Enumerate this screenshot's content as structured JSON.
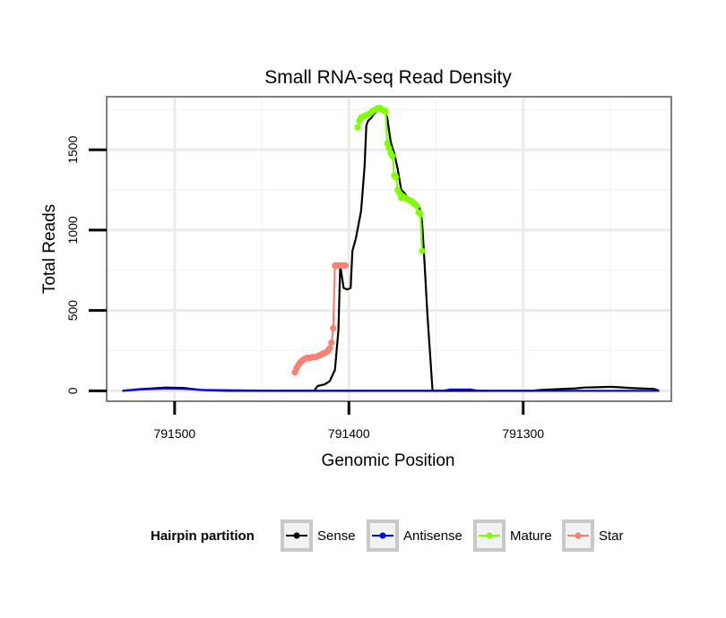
{
  "chart_data": {
    "type": "line",
    "title": "Small RNA-seq Read Density",
    "xlabel": "Genomic Position",
    "ylabel": "Total Reads",
    "x_reversed": true,
    "xlim": [
      791539,
      791215
    ],
    "ylim": [
      -65,
      1830
    ],
    "grid": true,
    "x_ticks": [
      791500,
      791400,
      791300
    ],
    "x_tick_labels": [
      "791500",
      "791400",
      "791300"
    ],
    "y_ticks": [
      0,
      500,
      1000,
      1500
    ],
    "y_tick_labels": [
      "0",
      "500",
      "1000",
      "1500"
    ],
    "legend": {
      "title": "Hairpin partition",
      "position": "bottom",
      "entries": [
        {
          "label": "Sense",
          "color": "#000000"
        },
        {
          "label": "Antisense",
          "color": "#0000ff"
        },
        {
          "label": "Mature",
          "color": "#7fff00"
        },
        {
          "label": "Star",
          "color": "#fa8072"
        }
      ]
    },
    "series": [
      {
        "name": "Sense",
        "color": "#000000",
        "x": [
          791530,
          791520,
          791505,
          791495,
          791485,
          791470,
          791440,
          791400,
          791400,
          791385,
          791380,
          791370,
          791340,
          791320,
          791310,
          791300,
          791295,
          791290,
          791280,
          791270,
          791265,
          791258,
          791250,
          791245,
          791239,
          791235,
          791225,
          791222
        ],
        "y": [
          0,
          10,
          20,
          18,
          5,
          0,
          0,
          0,
          0,
          0,
          0,
          0,
          0,
          0,
          0,
          0,
          0,
          5,
          10,
          15,
          20,
          22,
          25,
          22,
          18,
          16,
          12,
          0
        ]
      },
      {
        "name": "Sense",
        "color": "#000000",
        "x": [
          791440,
          791420,
          791418,
          791414,
          791411,
          791408,
          791406,
          791405,
          791403,
          791401,
          791399,
          791398,
          791396,
          791393,
          791391,
          791390,
          791389,
          791387,
          791386,
          791384,
          791383,
          791382,
          791380,
          791378,
          791377,
          791376,
          791375,
          791374,
          791372,
          791370,
          791368,
          791367,
          791366,
          791365,
          791364,
          791363,
          791362,
          791360,
          791359,
          791358,
          791357,
          791355,
          791352,
          791349,
          791345,
          791341,
          791339,
          791336,
          791335,
          791320
        ],
        "y": [
          0,
          0,
          30,
          40,
          60,
          130,
          380,
          780,
          640,
          630,
          640,
          870,
          950,
          1120,
          1400,
          1650,
          1680,
          1700,
          1720,
          1740,
          1755,
          1760,
          1745,
          1700,
          1620,
          1550,
          1510,
          1480,
          1380,
          1250,
          1230,
          1210,
          1195,
          1190,
          1180,
          1170,
          1160,
          1150,
          1120,
          1050,
          870,
          480,
          0,
          0,
          0,
          0,
          0,
          0,
          0,
          0
        ]
      },
      {
        "name": "Antisense",
        "color": "#0000ff",
        "x": [
          791530,
          791520,
          791505,
          791495,
          791485,
          791440,
          791400,
          791360,
          791346,
          791342,
          791330,
          791326,
          791300,
          791280,
          791260,
          791222
        ],
        "y": [
          0,
          8,
          15,
          13,
          5,
          0,
          0,
          0,
          0,
          8,
          8,
          0,
          0,
          0,
          0,
          0
        ]
      },
      {
        "name": "Mature",
        "color": "#7fff00",
        "x": [
          791395,
          791394,
          791393,
          791392,
          791391,
          791390,
          791389,
          791388,
          791387,
          791386,
          791385,
          791384,
          791383,
          791382,
          791381,
          791380,
          791379,
          791378,
          791377,
          791376,
          791375,
          791374,
          791373,
          791372,
          791371,
          791370,
          791369,
          791368,
          791367,
          791366,
          791365,
          791364,
          791363,
          791362,
          791361,
          791360,
          791359,
          791358
        ],
        "y": [
          1640,
          1680,
          1700,
          1705,
          1710,
          1715,
          1720,
          1725,
          1735,
          1745,
          1750,
          1755,
          1760,
          1760,
          1750,
          1745,
          1740,
          1540,
          1510,
          1480,
          1460,
          1340,
          1330,
          1250,
          1230,
          1200,
          1210,
          1200,
          1195,
          1190,
          1185,
          1180,
          1170,
          1160,
          1150,
          1110,
          1100,
          870
        ]
      },
      {
        "name": "Star",
        "color": "#fa8072",
        "x": [
          791431,
          791430,
          791429,
          791428,
          791427,
          791426,
          791425,
          791424,
          791423,
          791422,
          791421,
          791420,
          791419,
          791418,
          791417,
          791416,
          791415,
          791414,
          791413,
          791412,
          791411,
          791410,
          791409,
          791408,
          791407,
          791406,
          791405,
          791404,
          791403,
          791402
        ],
        "y": [
          115,
          140,
          160,
          175,
          185,
          195,
          200,
          205,
          205,
          205,
          210,
          210,
          210,
          215,
          220,
          225,
          230,
          235,
          240,
          250,
          265,
          300,
          390,
          780,
          780,
          780,
          780,
          780,
          780,
          780
        ]
      }
    ]
  }
}
